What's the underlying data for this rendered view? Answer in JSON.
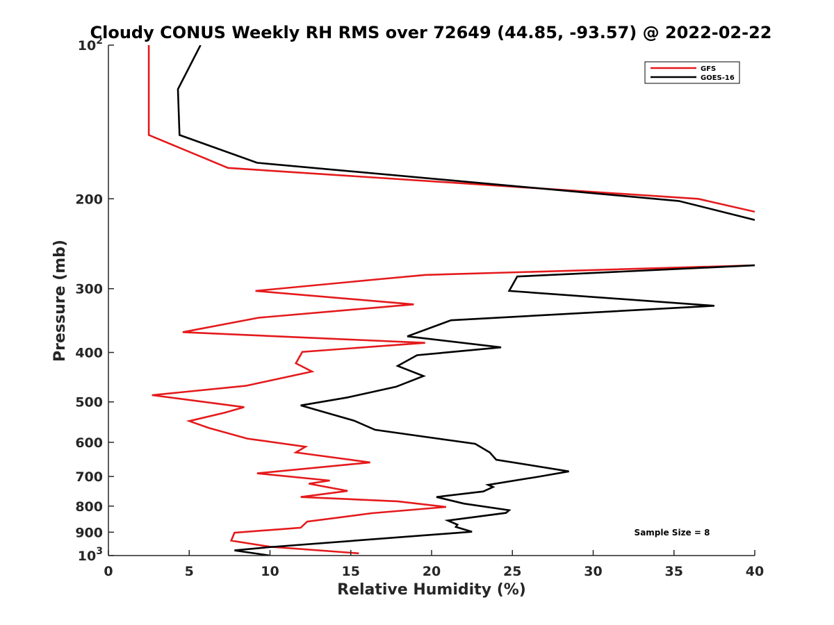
{
  "chart_data": {
    "type": "line",
    "title": "Cloudy CONUS Weekly RH RMS over 72649 (44.85, -93.57) @ 2022-02-22",
    "xlabel": "Relative Humidity (%)",
    "ylabel": "Pressure (mb)",
    "xlim": [
      0,
      40
    ],
    "ylim": [
      100,
      1000
    ],
    "y_scale": "log",
    "y_reversed": true,
    "grid": false,
    "legend_position": "top-right",
    "x_ticks": [
      {
        "value": 0,
        "label": "0"
      },
      {
        "value": 5,
        "label": "5"
      },
      {
        "value": 10,
        "label": "10"
      },
      {
        "value": 15,
        "label": "15"
      },
      {
        "value": 20,
        "label": "20"
      },
      {
        "value": 25,
        "label": "25"
      },
      {
        "value": 30,
        "label": "30"
      },
      {
        "value": 35,
        "label": "35"
      },
      {
        "value": 40,
        "label": "40"
      }
    ],
    "y_ticks": [
      {
        "value": 100,
        "label": "10",
        "sup": "2"
      },
      {
        "value": 200,
        "label": "200",
        "sup": ""
      },
      {
        "value": 300,
        "label": "300",
        "sup": ""
      },
      {
        "value": 400,
        "label": "400",
        "sup": ""
      },
      {
        "value": 500,
        "label": "500",
        "sup": ""
      },
      {
        "value": 600,
        "label": "600",
        "sup": ""
      },
      {
        "value": 700,
        "label": "700",
        "sup": ""
      },
      {
        "value": 800,
        "label": "800",
        "sup": ""
      },
      {
        "value": 900,
        "label": "900",
        "sup": ""
      },
      {
        "value": 1000,
        "label": "10",
        "sup": "3"
      }
    ],
    "annotation": "Sample Size = 8",
    "series": [
      {
        "name": "GFS",
        "color": "#e41a1c",
        "points": [
          [
            2.5,
            100
          ],
          [
            2.5,
            150
          ],
          [
            7.4,
            174
          ],
          [
            36.5,
            200
          ],
          [
            40,
            212
          ],
          [
            null,
            null
          ],
          [
            40,
            270
          ],
          [
            19.6,
            282
          ],
          [
            17.0,
            287
          ],
          [
            9.1,
            303
          ],
          [
            18.9,
            322
          ],
          [
            9.3,
            342
          ],
          [
            4.6,
            365
          ],
          [
            19.6,
            383
          ],
          [
            12.0,
            399
          ],
          [
            11.6,
            420
          ],
          [
            12.6,
            436
          ],
          [
            8.5,
            465
          ],
          [
            2.7,
            485
          ],
          [
            8.4,
            512
          ],
          [
            7.2,
            525
          ],
          [
            5.0,
            545
          ],
          [
            6.2,
            562
          ],
          [
            8.6,
            590
          ],
          [
            12.2,
            612
          ],
          [
            11.6,
            628
          ],
          [
            16.2,
            657
          ],
          [
            9.2,
            690
          ],
          [
            13.7,
            713
          ],
          [
            12.4,
            723
          ],
          [
            14.8,
            747
          ],
          [
            11.9,
            768
          ],
          [
            17.9,
            783
          ],
          [
            20.9,
            803
          ],
          [
            16.3,
            826
          ],
          [
            12.3,
            858
          ],
          [
            11.9,
            882
          ],
          [
            7.8,
            902
          ],
          [
            7.6,
            935
          ],
          [
            10.0,
            961
          ],
          [
            15.5,
            990
          ]
        ]
      },
      {
        "name": "GOES-16",
        "color": "#000000",
        "points": [
          [
            5.7,
            100
          ],
          [
            4.3,
            122
          ],
          [
            4.4,
            150
          ],
          [
            9.2,
            170
          ],
          [
            35.3,
            202
          ],
          [
            40,
            220
          ],
          [
            null,
            null
          ],
          [
            40,
            270
          ],
          [
            25.3,
            284
          ],
          [
            24.8,
            303
          ],
          [
            37.5,
            324
          ],
          [
            21.2,
            346
          ],
          [
            18.5,
            372
          ],
          [
            24.3,
            391
          ],
          [
            19.1,
            405
          ],
          [
            17.9,
            425
          ],
          [
            19.5,
            445
          ],
          [
            17.8,
            467
          ],
          [
            14.8,
            490
          ],
          [
            11.9,
            508
          ],
          [
            15.2,
            544
          ],
          [
            16.5,
            567
          ],
          [
            22.7,
            604
          ],
          [
            23.6,
            628
          ],
          [
            24.0,
            649
          ],
          [
            28.5,
            684
          ],
          [
            26.7,
            700
          ],
          [
            23.5,
            727
          ],
          [
            23.8,
            734
          ],
          [
            23.2,
            749
          ],
          [
            20.3,
            768
          ],
          [
            22.0,
            791
          ],
          [
            24.8,
            815
          ],
          [
            24.6,
            825
          ],
          [
            21.0,
            854
          ],
          [
            21.6,
            870
          ],
          [
            21.5,
            879
          ],
          [
            22.5,
            898
          ],
          [
            9.9,
            963
          ],
          [
            7.8,
            977
          ],
          [
            10.0,
            1000
          ]
        ]
      }
    ]
  }
}
